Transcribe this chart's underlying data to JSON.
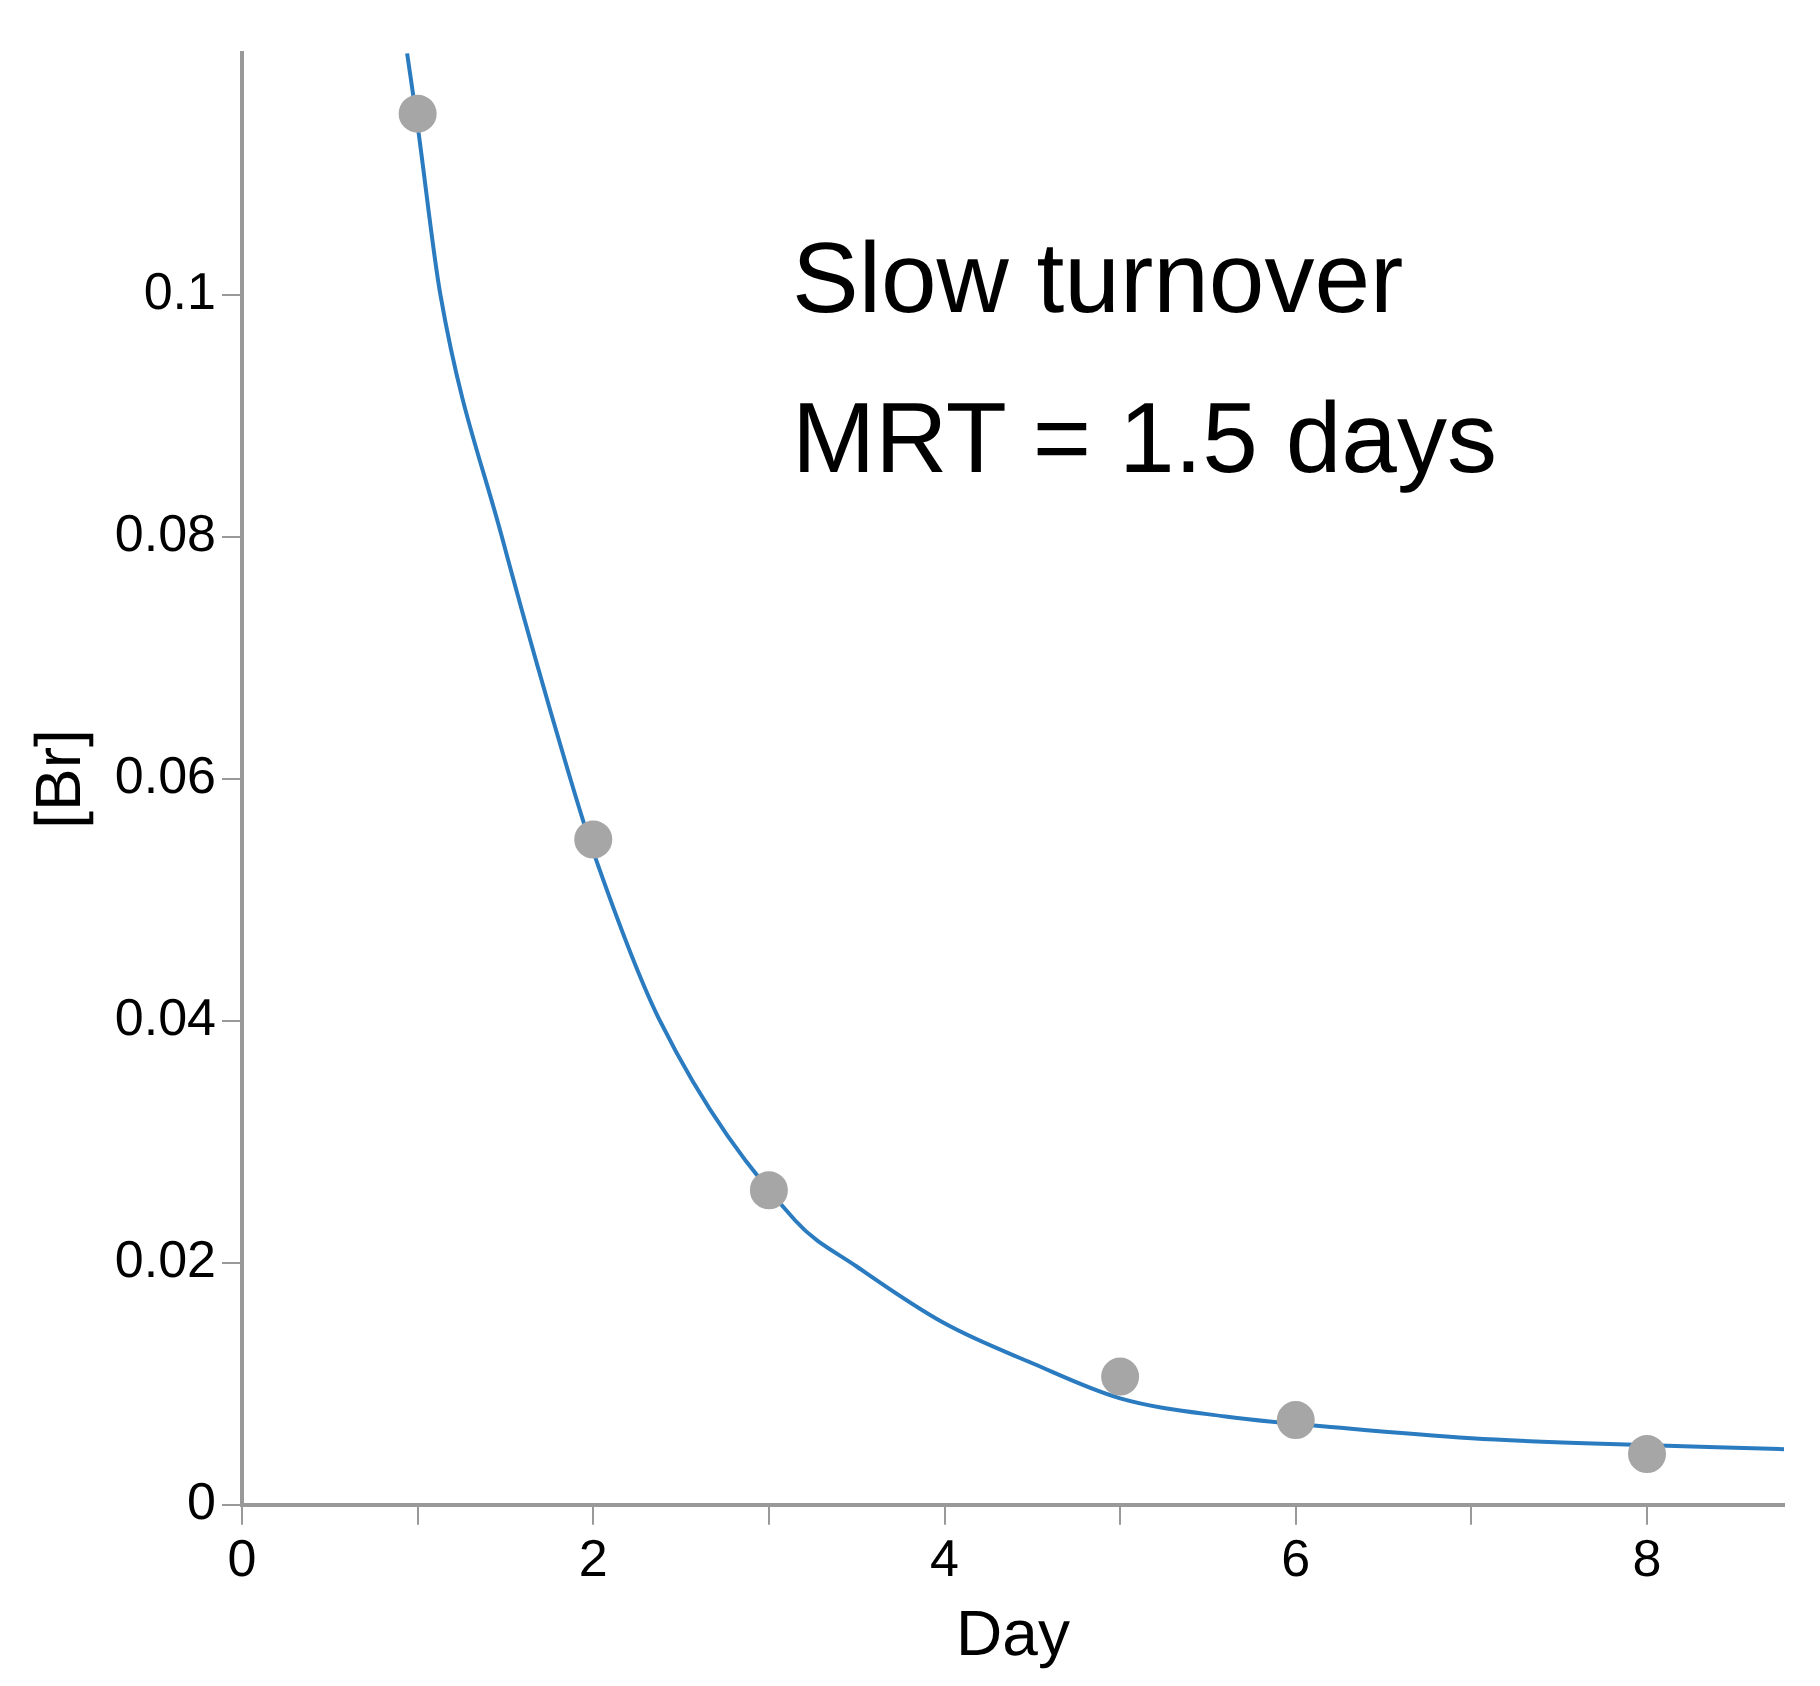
{
  "chart_data": {
    "type": "scatter",
    "xlabel": "Day",
    "ylabel": "[Br]",
    "annotations": [
      "Slow turnover",
      "MRT = 1.5 days"
    ],
    "series": [
      {
        "type": "scatter",
        "color": "#a6a6a6",
        "marker": "circle",
        "x": [
          1,
          2,
          3,
          5,
          6,
          8
        ],
        "values": [
          0.115,
          0.055,
          0.026,
          0.0106,
          0.007,
          0.0042
        ]
      },
      {
        "type": "line",
        "color": "#2a7bbf",
        "line_style": "solid",
        "x": [
          0.94,
          1.0,
          1.13,
          1.48,
          1.87,
          2.0,
          2.38,
          3.15,
          3.5,
          4.0,
          4.5,
          5.0,
          5.6,
          6.3,
          7.0,
          7.6,
          8.78
        ],
        "values": [
          0.12,
          0.114,
          0.1,
          0.08,
          0.06,
          0.054,
          0.04,
          0.0235,
          0.0197,
          0.015,
          0.0117,
          0.0088,
          0.0073,
          0.0063,
          0.0055,
          0.0051,
          0.0046
        ]
      }
    ],
    "xlim": [
      0,
      8.78
    ],
    "xticks": [
      0,
      {
        "value": 1,
        "label": null
      },
      2,
      {
        "value": 3,
        "label": null
      },
      4,
      {
        "value": 5,
        "label": null
      },
      6,
      {
        "value": 7,
        "label": null
      },
      8
    ],
    "ylim": [
      0,
      0.12
    ],
    "yticks": [
      0,
      0.02,
      0.04,
      0.06,
      0.08,
      0.1
    ],
    "legend": false
  }
}
